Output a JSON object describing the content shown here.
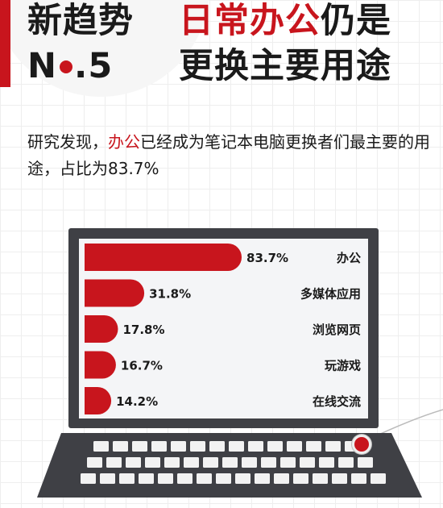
{
  "header": {
    "left_line1": "新趋势",
    "left_line2_prefix": "N",
    "left_line2_suffix": ".5",
    "right_line1_accent": "日常办公",
    "right_line1_rest": "仍是",
    "right_line2": "更换主要用途"
  },
  "description": {
    "prefix": "研究发现，",
    "accent": "办公",
    "rest": "已经成为笔记本电脑更换者们最主要的用途，占比为83.7%"
  },
  "colors": {
    "accent": "#c8151d",
    "monitor": "#3f4045",
    "screen": "#f4f5f7"
  },
  "chart_data": {
    "type": "bar",
    "orientation": "horizontal",
    "categories": [
      "办公",
      "多媒体应用",
      "浏览网页",
      "玩游戏",
      "在线交流"
    ],
    "values": [
      83.7,
      31.8,
      17.8,
      16.7,
      14.2
    ],
    "value_labels": [
      "83.7%",
      "31.8%",
      "17.8%",
      "16.7%",
      "14.2%"
    ],
    "xlim": [
      0,
      100
    ],
    "unit": "%"
  }
}
